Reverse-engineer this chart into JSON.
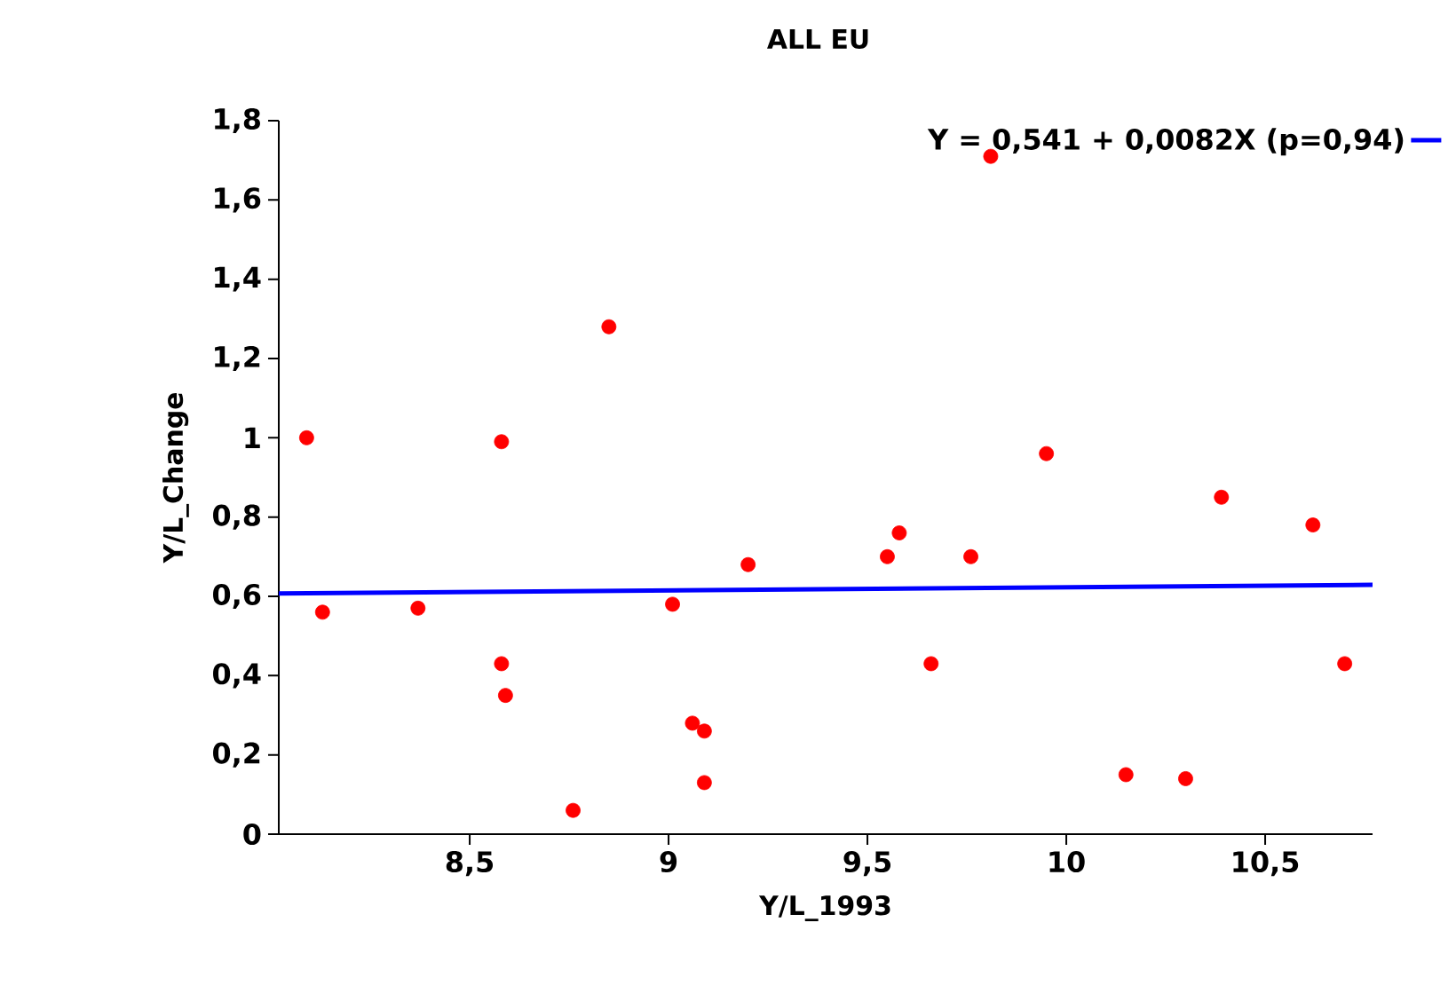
{
  "chart_data": {
    "type": "scatter",
    "title": "ALL EU",
    "xlabel": "Y/L_1993",
    "ylabel": "Y/L_Change",
    "xlim": [
      8.02,
      10.77
    ],
    "ylim": [
      0,
      1.8
    ],
    "xticks": [
      {
        "value": 8.5,
        "label": "8,5"
      },
      9,
      {
        "value": 9.5,
        "label": "9,5"
      },
      10,
      {
        "value": 10.5,
        "label": "10,5"
      }
    ],
    "yticks": [
      0,
      {
        "value": 0.2,
        "label": "0,2"
      },
      {
        "value": 0.4,
        "label": "0,4"
      },
      {
        "value": 0.6,
        "label": "0,6"
      },
      {
        "value": 0.8,
        "label": "0,8"
      },
      1,
      {
        "value": 1.2,
        "label": "1,2"
      },
      {
        "value": 1.4,
        "label": "1,4"
      },
      {
        "value": 1.6,
        "label": "1,6"
      },
      {
        "value": 1.8,
        "label": "1,8"
      }
    ],
    "grid": false,
    "legend": "top right",
    "series": [
      {
        "color": "#ff0000",
        "marker": "circle",
        "x": [
          8.09,
          8.13,
          8.37,
          8.58,
          8.58,
          8.59,
          8.85,
          8.76,
          9.01,
          9.06,
          9.09,
          9.09,
          9.2,
          9.55,
          9.58,
          9.66,
          9.76,
          9.81,
          9.95,
          10.15,
          10.3,
          10.39,
          10.62,
          10.7
        ],
        "values": [
          1.0,
          0.56,
          0.57,
          0.99,
          0.43,
          0.35,
          1.28,
          0.06,
          0.58,
          0.28,
          0.26,
          0.13,
          0.68,
          0.7,
          0.76,
          0.43,
          0.7,
          1.71,
          0.96,
          0.15,
          0.14,
          0.85,
          0.78,
          0.43
        ]
      },
      {
        "type": "line",
        "name": "Y = 0,541 + 0,0082X (p=0,94)",
        "color": "#0000ff",
        "marker": "none",
        "line_style": "solid",
        "x": [
          8.02,
          10.77
        ],
        "values": [
          0.607,
          0.629
        ]
      }
    ]
  }
}
